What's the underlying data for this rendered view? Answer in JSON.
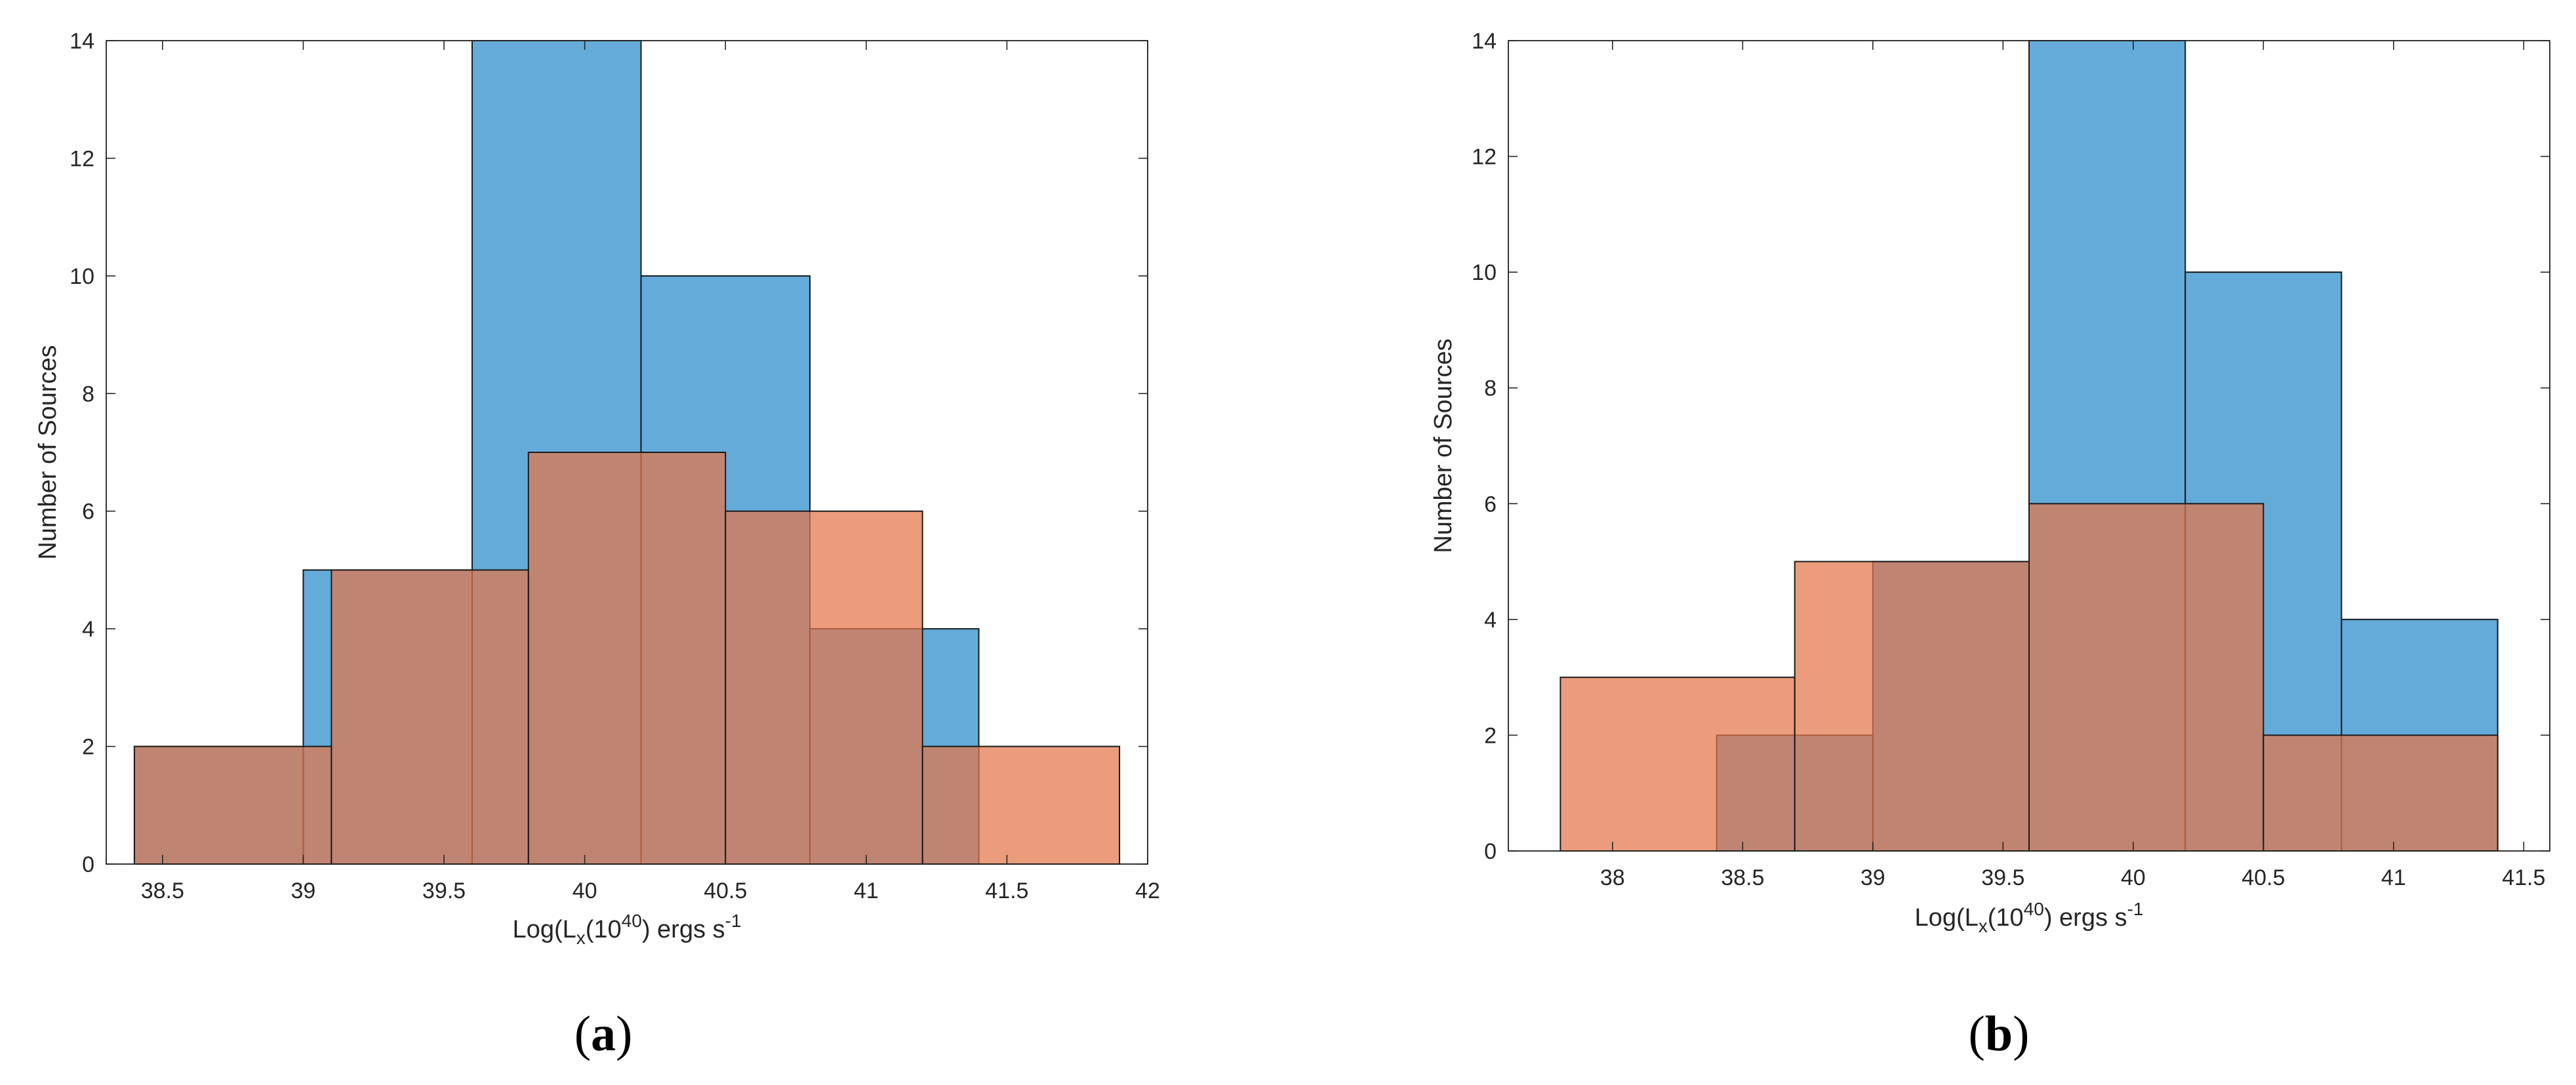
{
  "chart_data": [
    {
      "type": "histogram",
      "caption": {
        "open": "(",
        "letter": "a",
        "close": ")"
      },
      "xlabel": {
        "prefix": "Log(L",
        "sub": "x",
        "mid": "(10",
        "sup": "40",
        "suffix": ") ergs s",
        "unit_sup": "-1"
      },
      "ylabel": "Number of Sources",
      "xlim": [
        38.3,
        42.0
      ],
      "ylim": [
        0,
        14
      ],
      "xticks": [
        38.5,
        39,
        39.5,
        40,
        40.5,
        41,
        41.5,
        42
      ],
      "xtick_labels": [
        "38.5",
        "39",
        "39.5",
        "40",
        "40.5",
        "41",
        "41.5",
        "42"
      ],
      "yticks": [
        0,
        2,
        4,
        6,
        8,
        10,
        12,
        14
      ],
      "ytick_labels": [
        "0",
        "2",
        "4",
        "6",
        "8",
        "10",
        "12",
        "14"
      ],
      "series": [
        {
          "name": "blue",
          "color": "#4f9fd4",
          "alpha": 0.88,
          "edges": [
            38.4,
            39.0,
            39.6,
            40.2,
            40.8,
            41.4
          ],
          "counts": [
            2,
            5,
            14,
            10,
            4
          ]
        },
        {
          "name": "orange",
          "color": "#e3764a",
          "alpha": 0.72,
          "edges": [
            38.4,
            39.1,
            39.8,
            40.5,
            41.2,
            41.9
          ],
          "counts": [
            2,
            5,
            7,
            6,
            2
          ]
        }
      ]
    },
    {
      "type": "histogram",
      "caption": {
        "open": "(",
        "letter": "b",
        "close": ")"
      },
      "xlabel": {
        "prefix": "Log(L",
        "sub": "x",
        "mid": "(10",
        "sup": "40",
        "suffix": ") ergs s",
        "unit_sup": "-1"
      },
      "ylabel": "Number of Sources",
      "xlim": [
        37.6,
        41.6
      ],
      "ylim": [
        0,
        14
      ],
      "xticks": [
        38,
        38.5,
        39,
        39.5,
        40,
        40.5,
        41,
        41.5
      ],
      "xtick_labels": [
        "38",
        "38.5",
        "39",
        "39.5",
        "40",
        "40.5",
        "41",
        "41.5"
      ],
      "yticks": [
        0,
        2,
        4,
        6,
        8,
        10,
        12,
        14
      ],
      "ytick_labels": [
        "0",
        "2",
        "4",
        "6",
        "8",
        "10",
        "12",
        "14"
      ],
      "series": [
        {
          "name": "blue",
          "color": "#4f9fd4",
          "alpha": 0.88,
          "edges": [
            38.4,
            39.0,
            39.6,
            40.2,
            40.8,
            41.4
          ],
          "counts": [
            2,
            5,
            14,
            10,
            4
          ]
        },
        {
          "name": "orange",
          "color": "#e3764a",
          "alpha": 0.72,
          "edges": [
            37.8,
            38.7,
            39.6,
            40.5,
            41.4
          ],
          "counts": [
            3,
            5,
            6,
            2
          ]
        }
      ]
    }
  ]
}
